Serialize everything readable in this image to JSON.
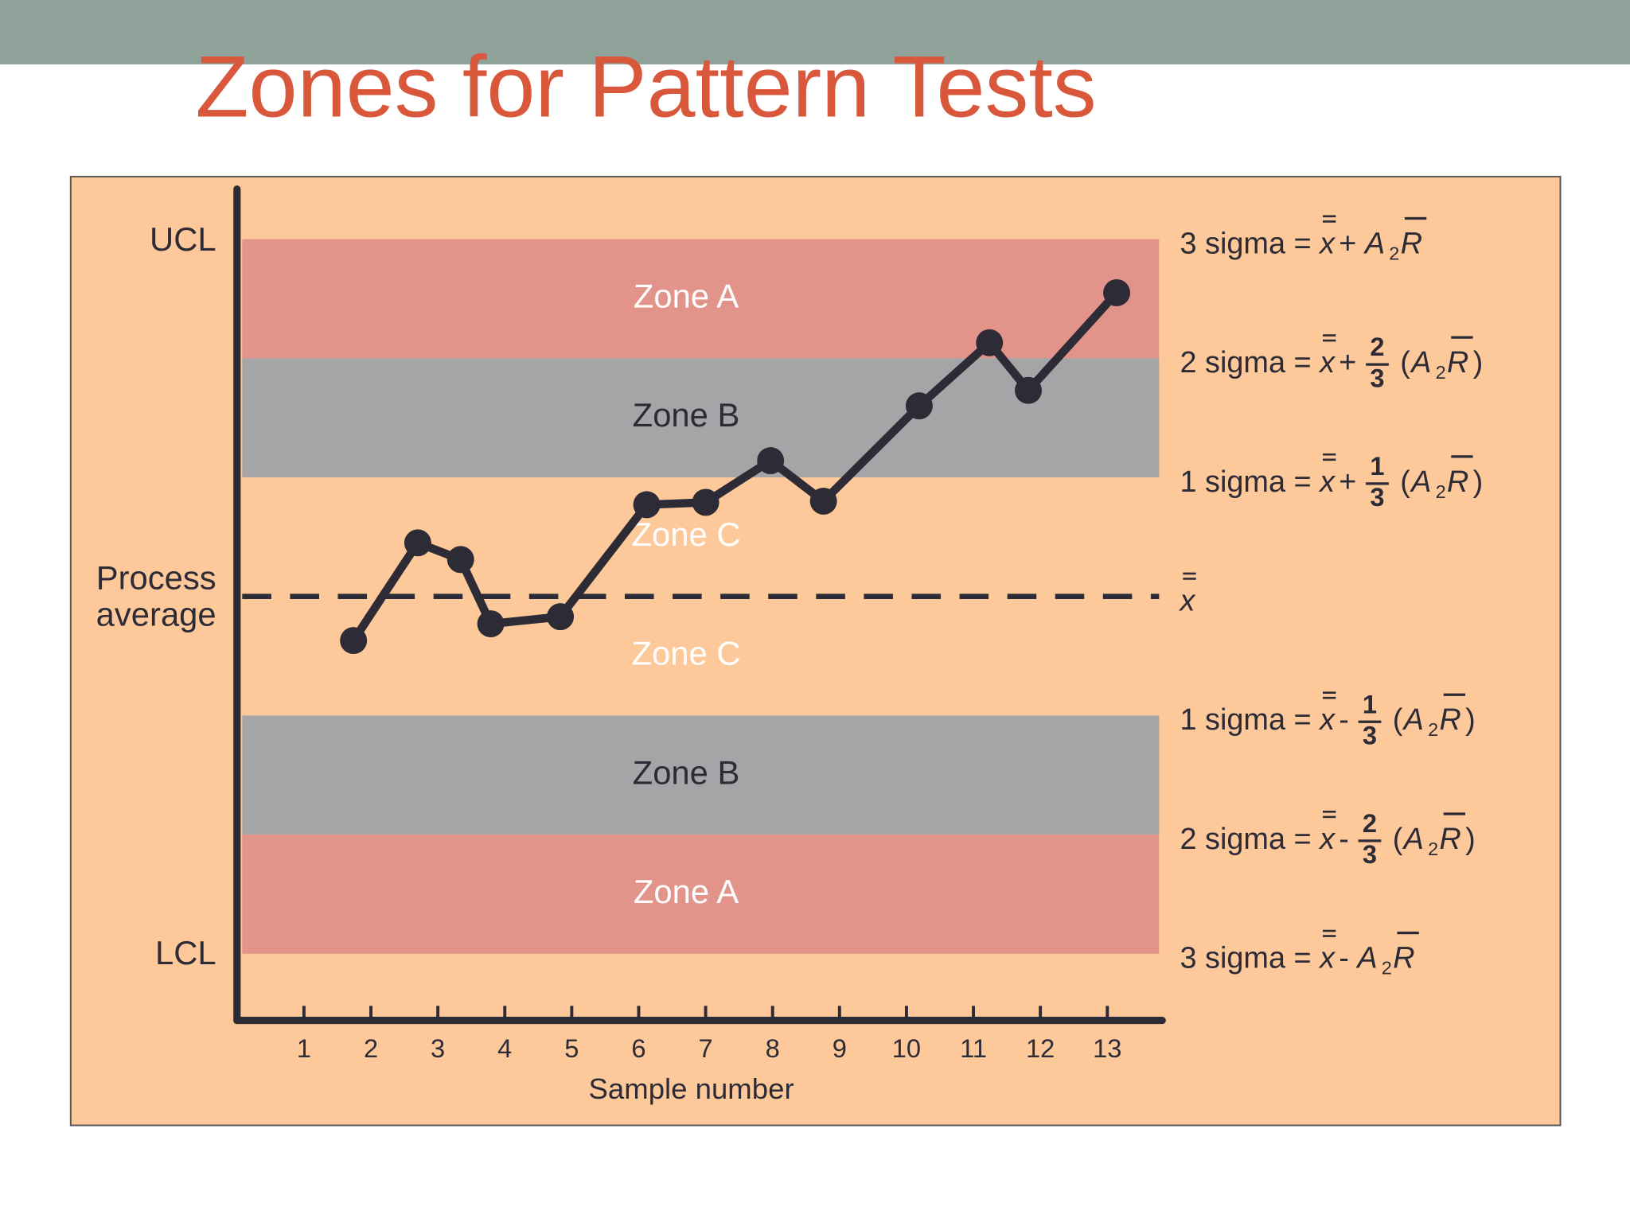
{
  "chart_data": {
    "type": "line",
    "title": "Zones for Pattern Tests",
    "x_label": "Sample number",
    "x": [
      1.74,
      2.7,
      3.34,
      3.79,
      4.83,
      6.12,
      7.0,
      7.97,
      8.76,
      10.19,
      11.24,
      11.82,
      13.14
    ],
    "values": [
      -0.37,
      0.45,
      0.31,
      -0.23,
      -0.17,
      0.77,
      0.79,
      1.14,
      0.8,
      1.6,
      2.13,
      1.73,
      2.55
    ],
    "color": "#2d2b35",
    "xlim": [
      0,
      13.82
    ],
    "xticks": [
      1,
      2,
      3,
      4,
      5,
      6,
      7,
      8,
      9,
      10,
      11,
      12,
      13
    ],
    "ylim": [
      -3.56,
      3.42
    ],
    "yticks": [
      {
        "value": 3,
        "label": "UCL"
      },
      {
        "value": 0,
        "label": "Process average"
      },
      {
        "value": -3,
        "label": "LCL"
      }
    ],
    "center_line": 0,
    "zones": [
      {
        "label": "Zone A",
        "from": 2,
        "to": 3,
        "color": "#e3948a",
        "text_color": "#ffffff"
      },
      {
        "label": "Zone B",
        "from": 1,
        "to": 2,
        "color": "#a5a4a6",
        "text_color": "#2d2b35"
      },
      {
        "label": "Zone C",
        "from": 0,
        "to": 1,
        "color": "#fdc99a",
        "text_color": "#ffffff"
      },
      {
        "label": "Zone C",
        "from": -1,
        "to": 0,
        "color": "#fdc99a",
        "text_color": "#ffffff"
      },
      {
        "label": "Zone B",
        "from": -2,
        "to": -1,
        "color": "#a5a4a6",
        "text_color": "#2d2b35"
      },
      {
        "label": "Zone A",
        "from": -3,
        "to": -2,
        "color": "#e3948a",
        "text_color": "#ffffff"
      }
    ],
    "formulas": [
      {
        "at": 3,
        "parts": [
          {
            "text": "3 sigma ="
          },
          {
            "text": "x",
            "style": "italic dbar"
          },
          {
            "text": "+"
          },
          {
            "text": "A",
            "style": "italic"
          },
          {
            "text": "2",
            "style": "sub"
          },
          {
            "text": "R",
            "style": "italic bar"
          }
        ]
      },
      {
        "at": 2,
        "parts": [
          {
            "text": "2 sigma ="
          },
          {
            "text": "x",
            "style": "italic dbar"
          },
          {
            "text": "+"
          },
          {
            "num": "2",
            "den": "3"
          },
          {
            "text": "("
          },
          {
            "text": "A",
            "style": "italic"
          },
          {
            "text": "2",
            "style": "sub"
          },
          {
            "text": "R",
            "style": "italic bar"
          },
          {
            "text": ")"
          }
        ]
      },
      {
        "at": 1,
        "parts": [
          {
            "text": "1 sigma ="
          },
          {
            "text": "x",
            "style": "italic dbar"
          },
          {
            "text": "+"
          },
          {
            "num": "1",
            "den": "3"
          },
          {
            "text": "("
          },
          {
            "text": "A",
            "style": "italic"
          },
          {
            "text": "2",
            "style": "sub"
          },
          {
            "text": "R",
            "style": "italic bar"
          },
          {
            "text": ")"
          }
        ]
      },
      {
        "at": 0,
        "parts": [
          {
            "text": "x",
            "style": "italic dbar"
          }
        ]
      },
      {
        "at": -1,
        "parts": [
          {
            "text": "1 sigma ="
          },
          {
            "text": "x",
            "style": "italic dbar"
          },
          {
            "text": "-"
          },
          {
            "num": "1",
            "den": "3"
          },
          {
            "text": "("
          },
          {
            "text": "A",
            "style": "italic"
          },
          {
            "text": "2",
            "style": "sub"
          },
          {
            "text": "R",
            "style": "italic bar"
          },
          {
            "text": ")"
          }
        ]
      },
      {
        "at": -2,
        "parts": [
          {
            "text": "2 sigma ="
          },
          {
            "text": "x",
            "style": "italic dbar"
          },
          {
            "text": "-"
          },
          {
            "num": "2",
            "den": "3"
          },
          {
            "text": "("
          },
          {
            "text": "A",
            "style": "italic"
          },
          {
            "text": "2",
            "style": "sub"
          },
          {
            "text": "R",
            "style": "italic bar"
          },
          {
            "text": ")"
          }
        ]
      },
      {
        "at": -3,
        "parts": [
          {
            "text": "3 sigma ="
          },
          {
            "text": "x",
            "style": "italic dbar"
          },
          {
            "text": "-"
          },
          {
            "text": "A",
            "style": "italic"
          },
          {
            "text": "2",
            "style": "sub"
          },
          {
            "text": "R",
            "style": "italic bar"
          }
        ]
      }
    ]
  }
}
